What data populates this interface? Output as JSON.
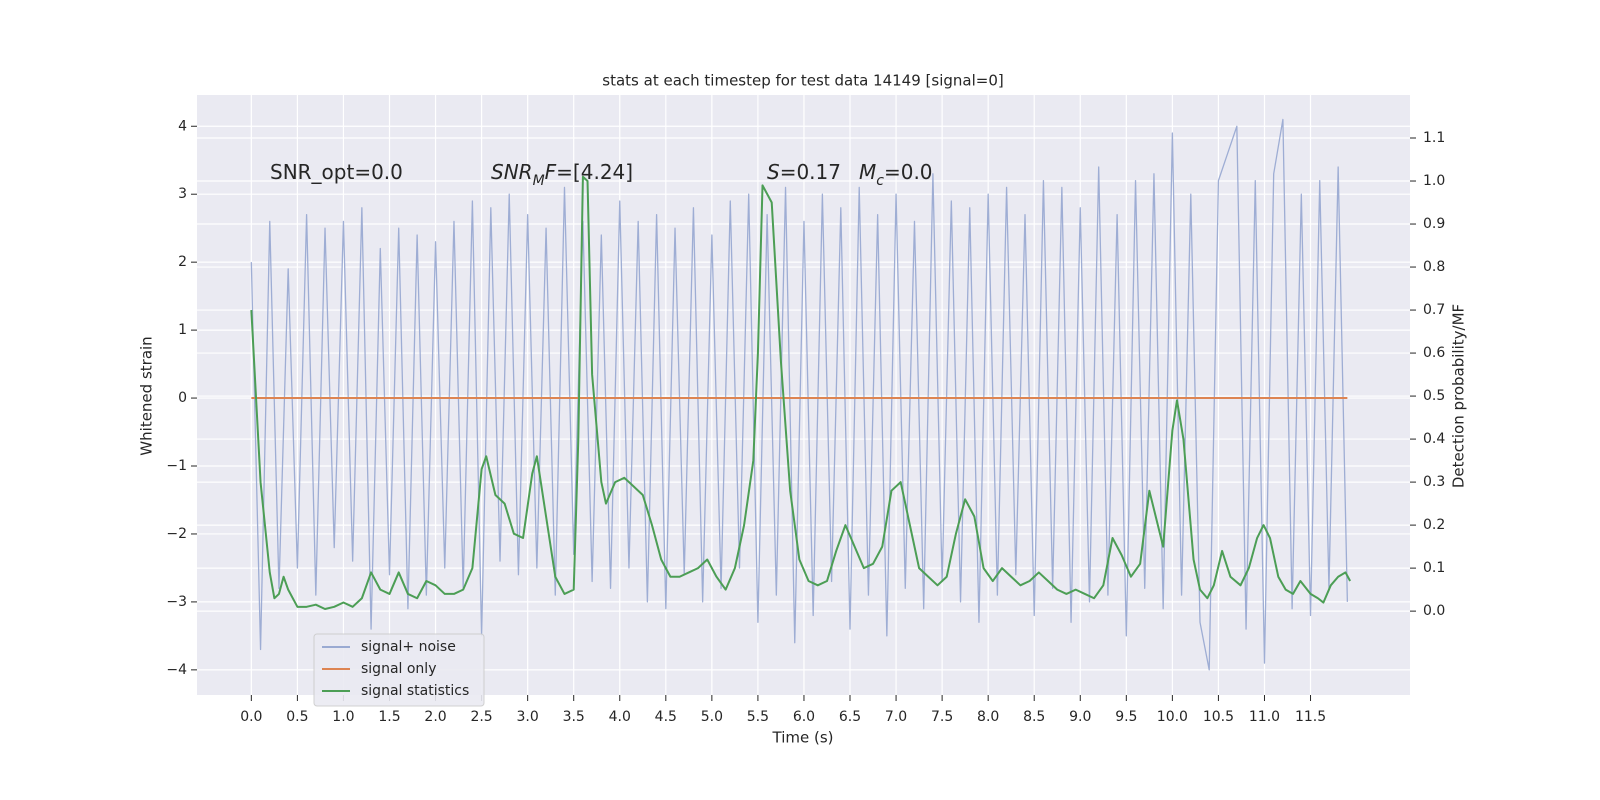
{
  "chart_data": {
    "type": "line",
    "title": "stats at each timestep for test data 14149 [signal=0]",
    "xlabel": "Time (s)",
    "ylabel": "Whitened strain",
    "y2label": "Detection probability/MF",
    "xlim": [
      -0.59,
      12.58
    ],
    "ylim": [
      -4.37,
      4.46
    ],
    "y2lim": [
      -0.195,
      1.2
    ],
    "xticks": [
      {
        "value": 0,
        "label": "0.0"
      },
      0.5,
      {
        "value": 1,
        "label": "1.0"
      },
      1.5,
      {
        "value": 2,
        "label": "2.0"
      },
      2.5,
      {
        "value": 3,
        "label": "3.0"
      },
      3.5,
      {
        "value": 4,
        "label": "4.0"
      },
      4.5,
      {
        "value": 5,
        "label": "5.0"
      },
      5.5,
      {
        "value": 6,
        "label": "6.0"
      },
      6.5,
      {
        "value": 7,
        "label": "7.0"
      },
      7.5,
      {
        "value": 8,
        "label": "8.0"
      },
      8.5,
      {
        "value": 9,
        "label": "9.0"
      },
      9.5,
      {
        "value": 10,
        "label": "10.0"
      },
      10.5,
      {
        "value": 11,
        "label": "11.0"
      },
      11.5
    ],
    "yticks": [
      {
        "value": -4,
        "label": "−4"
      },
      {
        "value": -3,
        "label": "−3"
      },
      {
        "value": -2,
        "label": "−2"
      },
      {
        "value": -1,
        "label": "−1"
      },
      0,
      1,
      2,
      3,
      4
    ],
    "y2ticks": [
      {
        "value": 0,
        "label": "0.0"
      },
      0.1,
      0.2,
      0.3,
      0.4,
      0.5,
      0.6,
      0.7,
      0.8,
      0.9,
      {
        "value": 1,
        "label": "1.0"
      },
      1.1
    ],
    "grid": true,
    "legend": "lower left",
    "annotations": [
      [
        {
          "text": "SNR_opt=0.0"
        }
      ],
      [
        {
          "text": "SNR",
          "italic": true
        },
        {
          "text": "M",
          "italic": true,
          "sub": true
        },
        {
          "text": "F",
          "italic": true
        },
        {
          "text": "=[4.24]"
        }
      ],
      [
        {
          "text": "S",
          "italic": true
        },
        {
          "text": "=0.17"
        }
      ],
      [
        {
          "text": "M",
          "italic": true
        },
        {
          "text": "c",
          "italic": true,
          "sub": true
        },
        {
          "text": "=0.0"
        }
      ]
    ],
    "series": [
      {
        "name": "signal+ noise",
        "color": "#9aaad2",
        "x": [
          0,
          0.1,
          0.2,
          0.3,
          0.4,
          0.5,
          0.6,
          0.7,
          0.8,
          0.9,
          1,
          1.1,
          1.2,
          1.3,
          1.4,
          1.5,
          1.6,
          1.7,
          1.8,
          1.9,
          2,
          2.1,
          2.2,
          2.3,
          2.4,
          2.5,
          2.6,
          2.7,
          2.8,
          2.9,
          3,
          3.1,
          3.2,
          3.3,
          3.4,
          3.5,
          3.6,
          3.7,
          3.8,
          3.9,
          4,
          4.1,
          4.2,
          4.3,
          4.4,
          4.5,
          4.6,
          4.7,
          4.8,
          4.9,
          5,
          5.1,
          5.2,
          5.3,
          5.4,
          5.5,
          5.6,
          5.7,
          5.8,
          5.9,
          6,
          6.1,
          6.2,
          6.3,
          6.4,
          6.5,
          6.6,
          6.7,
          6.8,
          6.9,
          7,
          7.1,
          7.2,
          7.3,
          7.4,
          7.5,
          7.6,
          7.7,
          7.8,
          7.9,
          8,
          8.1,
          8.2,
          8.3,
          8.4,
          8.5,
          8.6,
          8.7,
          8.8,
          8.9,
          9,
          9.1,
          9.2,
          9.3,
          9.4,
          9.5,
          9.6,
          9.7,
          9.8,
          9.9,
          10,
          10.1,
          10.2,
          10.3,
          10.4,
          10.5,
          10.6,
          10.7,
          10.8,
          10.9,
          11,
          11.1,
          11.2,
          11.3,
          11.4,
          11.5,
          11.6,
          11.7,
          11.8,
          11.9
        ],
        "values": [
          2.0,
          -3.7,
          2.6,
          -2.8,
          1.9,
          -2.5,
          2.7,
          -2.9,
          2.5,
          -2.2,
          2.6,
          -2.4,
          2.8,
          -3.4,
          2.2,
          -2.6,
          2.5,
          -3.1,
          2.4,
          -2.9,
          2.3,
          -2.5,
          2.6,
          -2.8,
          2.9,
          -3.5,
          2.8,
          -2.4,
          3.0,
          -2.6,
          2.7,
          -2.5,
          2.5,
          -2.9,
          3.1,
          -2.3,
          2.6,
          -2.7,
          2.4,
          -2.8,
          2.9,
          -2.5,
          2.6,
          -3.0,
          2.7,
          -3.1,
          2.5,
          -2.6,
          2.8,
          -3.0,
          2.4,
          -2.8,
          2.9,
          -2.5,
          3.0,
          -3.3,
          2.7,
          -2.9,
          3.1,
          -3.6,
          2.6,
          -3.2,
          3.0,
          -2.7,
          2.8,
          -3.4,
          3.1,
          -2.9,
          2.7,
          -3.5,
          3.0,
          -2.8,
          2.6,
          -3.1,
          3.3,
          -2.7,
          2.9,
          -3.0,
          2.8,
          -3.3,
          3.0,
          -2.9,
          3.1,
          -2.6,
          2.7,
          -3.2,
          3.2,
          -2.8,
          3.1,
          -3.3,
          2.8,
          -3.0,
          3.4,
          -2.9,
          2.7,
          -3.5,
          3.2,
          -2.8,
          3.3,
          -3.1,
          3.9,
          -2.9,
          3.0,
          -3.3,
          -4.0,
          3.2,
          3.6,
          4.0,
          -3.4,
          3.2,
          -3.9,
          3.3,
          4.1,
          -3.1,
          3.0,
          -3.2,
          3.2,
          -2.8,
          3.4,
          -3.0
        ]
      },
      {
        "name": "signal only",
        "color": "#dd8452",
        "x": [
          0,
          11.9
        ],
        "values": [
          0,
          0
        ]
      },
      {
        "name": "signal statistics",
        "color": "#4c9e55",
        "axis": "y2",
        "x": [
          0,
          0.1,
          0.2,
          0.25,
          0.3,
          0.35,
          0.4,
          0.5,
          0.6,
          0.7,
          0.8,
          0.9,
          1,
          1.1,
          1.2,
          1.3,
          1.4,
          1.5,
          1.6,
          1.7,
          1.8,
          1.9,
          2,
          2.1,
          2.2,
          2.3,
          2.4,
          2.5,
          2.55,
          2.65,
          2.75,
          2.85,
          2.95,
          3.05,
          3.1,
          3.2,
          3.3,
          3.4,
          3.5,
          3.55,
          3.6,
          3.65,
          3.7,
          3.8,
          3.85,
          3.95,
          4.05,
          4.15,
          4.25,
          4.35,
          4.45,
          4.55,
          4.65,
          4.75,
          4.85,
          4.95,
          5.05,
          5.15,
          5.25,
          5.35,
          5.45,
          5.5,
          5.55,
          5.65,
          5.75,
          5.85,
          5.95,
          6.05,
          6.15,
          6.25,
          6.35,
          6.45,
          6.55,
          6.65,
          6.75,
          6.85,
          6.95,
          7.05,
          7.15,
          7.25,
          7.35,
          7.45,
          7.55,
          7.65,
          7.75,
          7.85,
          7.95,
          8.05,
          8.15,
          8.25,
          8.35,
          8.45,
          8.55,
          8.65,
          8.75,
          8.85,
          8.95,
          9.05,
          9.15,
          9.25,
          9.35,
          9.45,
          9.55,
          9.65,
          9.75,
          9.9,
          10,
          10.05,
          10.12,
          10.23,
          10.3,
          10.38,
          10.45,
          10.54,
          10.63,
          10.74,
          10.83,
          10.92,
          10.99,
          11.06,
          11.15,
          11.23,
          11.31,
          11.39,
          11.5,
          11.58,
          11.64,
          11.72,
          11.8,
          11.88,
          11.93
        ],
        "values": [
          0.7,
          0.3,
          0.09,
          0.03,
          0.04,
          0.08,
          0.05,
          0.01,
          0.01,
          0.015,
          0.005,
          0.01,
          0.02,
          0.01,
          0.03,
          0.09,
          0.05,
          0.04,
          0.09,
          0.04,
          0.03,
          0.07,
          0.06,
          0.04,
          0.04,
          0.05,
          0.1,
          0.33,
          0.36,
          0.27,
          0.25,
          0.18,
          0.17,
          0.32,
          0.36,
          0.22,
          0.08,
          0.04,
          0.05,
          0.4,
          1.01,
          1.0,
          0.55,
          0.3,
          0.25,
          0.3,
          0.31,
          0.29,
          0.27,
          0.2,
          0.12,
          0.08,
          0.08,
          0.09,
          0.1,
          0.12,
          0.08,
          0.05,
          0.1,
          0.2,
          0.35,
          0.6,
          0.99,
          0.95,
          0.58,
          0.28,
          0.12,
          0.07,
          0.06,
          0.07,
          0.14,
          0.2,
          0.15,
          0.1,
          0.11,
          0.15,
          0.28,
          0.3,
          0.2,
          0.1,
          0.08,
          0.06,
          0.08,
          0.18,
          0.26,
          0.22,
          0.1,
          0.07,
          0.1,
          0.08,
          0.06,
          0.07,
          0.09,
          0.07,
          0.05,
          0.04,
          0.05,
          0.04,
          0.03,
          0.06,
          0.17,
          0.13,
          0.08,
          0.11,
          0.28,
          0.15,
          0.42,
          0.49,
          0.4,
          0.12,
          0.05,
          0.03,
          0.06,
          0.14,
          0.08,
          0.06,
          0.1,
          0.17,
          0.2,
          0.17,
          0.08,
          0.05,
          0.04,
          0.07,
          0.04,
          0.03,
          0.02,
          0.06,
          0.08,
          0.09,
          0.07
        ]
      }
    ]
  }
}
